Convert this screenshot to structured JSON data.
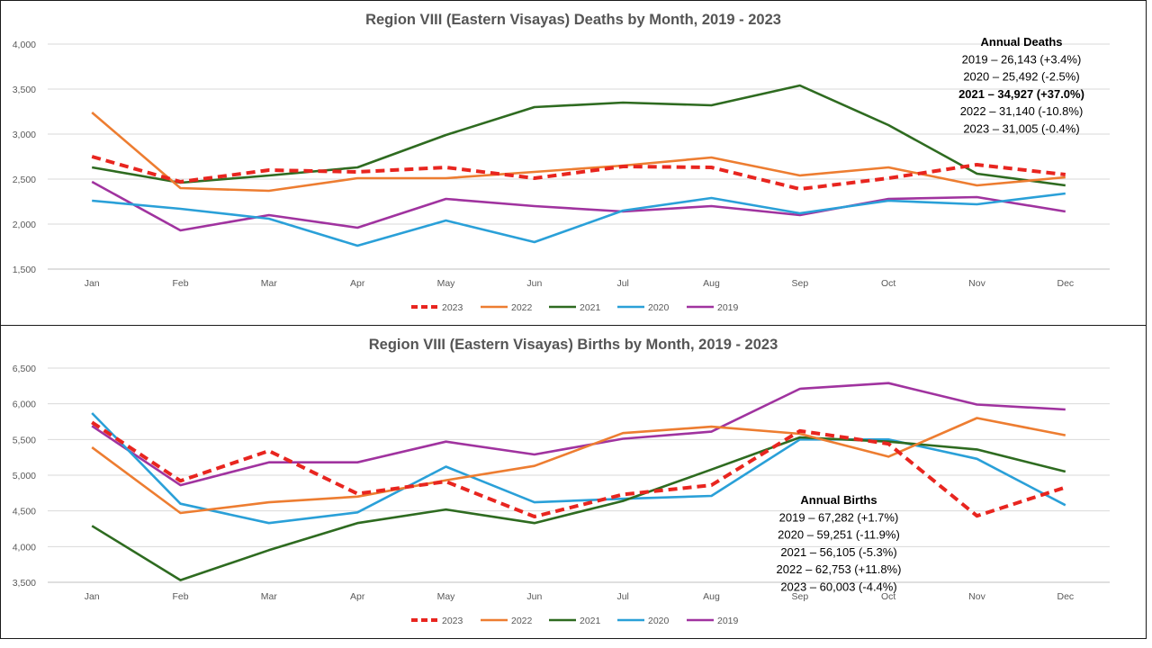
{
  "chart_data": [
    {
      "type": "line",
      "title": "Region VIII (Eastern Visayas) Deaths by Month, 2019 - 2023",
      "xlabel": "",
      "ylabel": "",
      "categories": [
        "Jan",
        "Feb",
        "Mar",
        "Apr",
        "May",
        "Jun",
        "Jul",
        "Aug",
        "Sep",
        "Oct",
        "Nov",
        "Dec"
      ],
      "ylim": [
        1500,
        4000
      ],
      "yticks": [
        1500,
        2000,
        2500,
        3000,
        3500,
        4000
      ],
      "ytick_labels": [
        "1,500",
        "2,000",
        "2,500",
        "3,000",
        "3,500",
        "4,000"
      ],
      "grid": true,
      "legend_position": "bottom",
      "series": [
        {
          "name": "2023",
          "color": "#e8251f",
          "dashed": true,
          "values": [
            2750,
            2470,
            2600,
            2580,
            2630,
            2510,
            2640,
            2630,
            2390,
            2510,
            2660,
            2550
          ]
        },
        {
          "name": "2022",
          "color": "#ed7d31",
          "dashed": false,
          "values": [
            3240,
            2400,
            2370,
            2510,
            2510,
            2580,
            2650,
            2740,
            2540,
            2630,
            2430,
            2520
          ]
        },
        {
          "name": "2021",
          "color": "#2e6b20",
          "dashed": false,
          "values": [
            2630,
            2460,
            2540,
            2630,
            2990,
            3300,
            3350,
            3320,
            3540,
            3100,
            2560,
            2430
          ]
        },
        {
          "name": "2020",
          "color": "#2aa0d8",
          "dashed": false,
          "values": [
            2260,
            2170,
            2060,
            1760,
            2040,
            1800,
            2150,
            2290,
            2120,
            2260,
            2220,
            2340
          ]
        },
        {
          "name": "2019",
          "color": "#a0339f",
          "dashed": false,
          "values": [
            2470,
            1930,
            2100,
            1960,
            2280,
            2200,
            2140,
            2200,
            2100,
            2280,
            2300,
            2140
          ]
        }
      ],
      "annotation": {
        "title": "Annual Deaths",
        "lines": [
          {
            "text": "2019 – 26,143 (+3.4%)",
            "bold": false
          },
          {
            "text": "2020 – 25,492 (-2.5%)",
            "bold": false
          },
          {
            "text": "2021 – 34,927 (+37.0%)",
            "bold": true
          },
          {
            "text": "2022 – 31,140 (-10.8%)",
            "bold": false
          },
          {
            "text": "2023 – 31,005 (-0.4%)",
            "bold": false
          }
        ]
      }
    },
    {
      "type": "line",
      "title": "Region VIII (Eastern Visayas) Births by Month, 2019 - 2023",
      "xlabel": "",
      "ylabel": "",
      "categories": [
        "Jan",
        "Feb",
        "Mar",
        "Apr",
        "May",
        "Jun",
        "Jul",
        "Aug",
        "Sep",
        "Oct",
        "Nov",
        "Dec"
      ],
      "ylim": [
        3500,
        6500
      ],
      "yticks": [
        3500,
        4000,
        4500,
        5000,
        5500,
        6000,
        6500
      ],
      "ytick_labels": [
        "3,500",
        "4,000",
        "4,500",
        "5,000",
        "5,500",
        "6,000",
        "6,500"
      ],
      "grid": true,
      "legend_position": "bottom",
      "series": [
        {
          "name": "2023",
          "color": "#e8251f",
          "dashed": true,
          "values": [
            5740,
            4920,
            5340,
            4740,
            4910,
            4420,
            4730,
            4860,
            5620,
            5440,
            4430,
            4830
          ]
        },
        {
          "name": "2022",
          "color": "#ed7d31",
          "dashed": false,
          "values": [
            5390,
            4470,
            4620,
            4700,
            4930,
            5130,
            5590,
            5680,
            5580,
            5260,
            5800,
            5560
          ]
        },
        {
          "name": "2021",
          "color": "#2e6b20",
          "dashed": false,
          "values": [
            4290,
            3530,
            3950,
            4330,
            4520,
            4330,
            4640,
            5080,
            5530,
            5470,
            5360,
            5050
          ]
        },
        {
          "name": "2020",
          "color": "#2aa0d8",
          "dashed": false,
          "values": [
            5870,
            4600,
            4330,
            4480,
            5120,
            4620,
            4670,
            4710,
            5500,
            5500,
            5230,
            4580
          ]
        },
        {
          "name": "2019",
          "color": "#a0339f",
          "dashed": false,
          "values": [
            5690,
            4860,
            5180,
            5180,
            5470,
            5290,
            5510,
            5610,
            6210,
            6290,
            5990,
            5920
          ]
        }
      ],
      "annotation": {
        "title": "Annual Births",
        "lines": [
          {
            "text": "2019 – 67,282 (+1.7%)",
            "bold": false
          },
          {
            "text": "2020 – 59,251 (-11.9%)",
            "bold": false
          },
          {
            "text": "2021 – 56,105 (-5.3%)",
            "bold": false
          },
          {
            "text": "2022 – 62,753 (+11.8%)",
            "bold": false
          },
          {
            "text": "2023 – 60,003 (-4.4%)",
            "bold": false
          }
        ]
      }
    }
  ]
}
